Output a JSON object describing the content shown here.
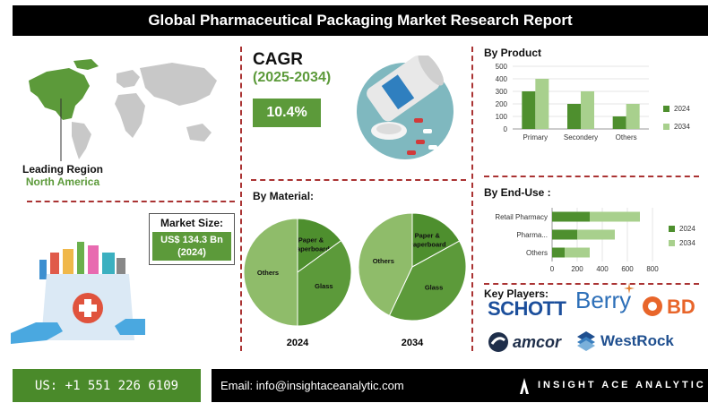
{
  "header": {
    "title": "Global Pharmaceutical Packaging Market Research Report"
  },
  "region": {
    "label": "Leading Region",
    "value": "North America"
  },
  "market_size": {
    "label": "Market Size:",
    "value_line1": "US$ 134.3 Bn",
    "value_line2": "(2024)"
  },
  "cagr": {
    "title": "CAGR",
    "years": "(2025-2034)",
    "value": "10.4%"
  },
  "material": {
    "title": "By Material:"
  },
  "product": {
    "title": "By Product"
  },
  "end_use": {
    "title": "By End-Use :"
  },
  "key_players": {
    "title": "Key Players:",
    "logos": [
      "SCHOTT",
      "Berry",
      "BD",
      "amcor",
      "WestRock"
    ]
  },
  "footer": {
    "phone": "US: +1 551 226 6109",
    "email": "Email: info@insightaceanalytic.com",
    "brand": "INSIGHT ACE ANALYTIC"
  },
  "colors": {
    "dark_green": "#5c9a3a",
    "light_green": "#a8d08d",
    "mid_green": "#4e8f2e",
    "pale_green": "#8fbc6a",
    "accent_red": "#a33333"
  },
  "chart_data": [
    {
      "type": "bar",
      "title": "By Product",
      "categories": [
        "Primary",
        "Secondery",
        "Others"
      ],
      "series": [
        {
          "name": "2024",
          "values": [
            300,
            200,
            100
          ]
        },
        {
          "name": "2034",
          "values": [
            400,
            300,
            200
          ]
        }
      ],
      "ylim": [
        0,
        500
      ],
      "yticks": [
        0,
        100,
        200,
        300,
        400,
        500
      ],
      "legend": "right"
    },
    {
      "type": "bar",
      "orientation": "horizontal",
      "title": "By End-Use :",
      "categories": [
        "Retail Pharmacy",
        "Pharma...",
        "Others"
      ],
      "series": [
        {
          "name": "2024",
          "values": [
            300,
            200,
            100
          ]
        },
        {
          "name": "2034",
          "values": [
            700,
            500,
            300
          ]
        }
      ],
      "xlim": [
        0,
        800
      ],
      "xticks": [
        0,
        200,
        400,
        600,
        800
      ],
      "legend": "right"
    },
    {
      "type": "pie",
      "title": "2024",
      "labels": [
        "Paper & Paperboard",
        "Glass",
        "Others"
      ],
      "values": [
        15,
        35,
        50
      ]
    },
    {
      "type": "pie",
      "title": "2034",
      "labels": [
        "Paper & Paperboard",
        "Glass",
        "Others"
      ],
      "values": [
        17,
        40,
        43
      ]
    }
  ]
}
